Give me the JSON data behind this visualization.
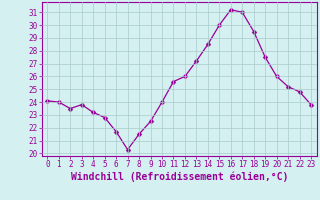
{
  "x": [
    0,
    1,
    2,
    3,
    4,
    5,
    6,
    7,
    8,
    9,
    10,
    11,
    12,
    13,
    14,
    15,
    16,
    17,
    18,
    19,
    20,
    21,
    22,
    23
  ],
  "y": [
    24.1,
    24.0,
    23.5,
    23.8,
    23.2,
    22.8,
    21.7,
    20.3,
    21.5,
    22.5,
    24.0,
    25.6,
    26.0,
    27.2,
    28.5,
    30.0,
    31.2,
    31.0,
    29.5,
    27.5,
    26.0,
    25.2,
    24.8,
    23.8
  ],
  "line_color": "#990099",
  "marker": "D",
  "marker_size": 2.5,
  "bg_color": "#d4f0f0",
  "grid_color": "#aacccc",
  "xlabel": "Windchill (Refroidissement éolien,°C)",
  "xlabel_color": "#990099",
  "ylabel_ticks": [
    20,
    21,
    22,
    23,
    24,
    25,
    26,
    27,
    28,
    29,
    30,
    31
  ],
  "xtick_labels": [
    "0",
    "1",
    "2",
    "3",
    "4",
    "5",
    "6",
    "7",
    "8",
    "9",
    "10",
    "11",
    "12",
    "13",
    "14",
    "15",
    "16",
    "17",
    "18",
    "19",
    "20",
    "21",
    "22",
    "23"
  ],
  "ylim": [
    19.8,
    31.8
  ],
  "xlim": [
    -0.5,
    23.5
  ],
  "tick_color": "#990099",
  "tick_fontsize": 5.5,
  "xlabel_fontsize": 7.0,
  "spine_color": "#990099",
  "linewidth": 0.9
}
